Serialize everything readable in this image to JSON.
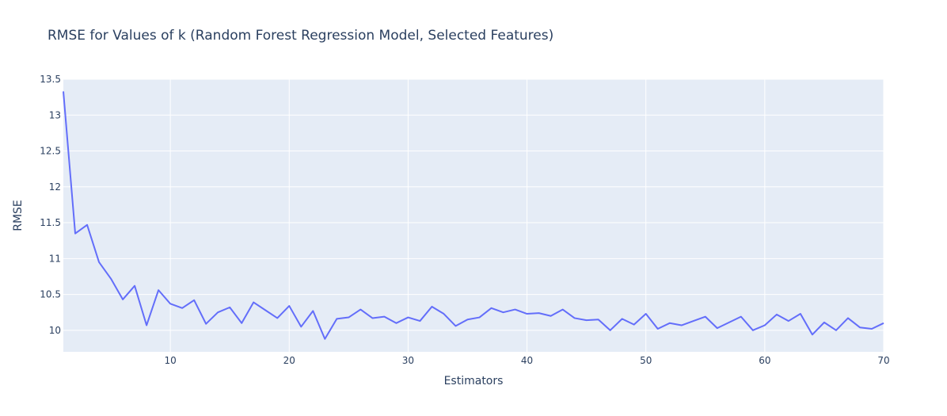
{
  "chart_data": {
    "type": "line",
    "title": "RMSE for Values of k (Random Forest Regression Model, Selected Features)",
    "xlabel": "Estimators",
    "ylabel": "RMSE",
    "xlim": [
      1,
      70
    ],
    "ylim": [
      9.7,
      13.5
    ],
    "x_ticks": [
      10,
      20,
      30,
      40,
      50,
      60,
      70
    ],
    "y_ticks": [
      10,
      10.5,
      11,
      11.5,
      12,
      12.5,
      13,
      13.5
    ],
    "x_tick_labels": [
      "10",
      "20",
      "30",
      "40",
      "50",
      "60",
      "70"
    ],
    "y_tick_labels": [
      "10",
      "10.5",
      "11",
      "11.5",
      "12",
      "12.5",
      "13",
      "13.5"
    ],
    "grid": true,
    "colors": {
      "line": "#636efa",
      "plot_bg": "#e5ecf6",
      "grid": "#ffffff",
      "text": "#2a3f5f"
    },
    "series": [
      {
        "name": "RMSE",
        "x": [
          1,
          2,
          3,
          4,
          5,
          6,
          7,
          8,
          9,
          10,
          11,
          12,
          13,
          14,
          15,
          16,
          17,
          18,
          19,
          20,
          21,
          22,
          23,
          24,
          25,
          26,
          27,
          28,
          29,
          30,
          31,
          32,
          33,
          34,
          35,
          36,
          37,
          38,
          39,
          40,
          41,
          42,
          43,
          44,
          45,
          46,
          47,
          48,
          49,
          50,
          51,
          52,
          53,
          54,
          55,
          56,
          57,
          58,
          59,
          60,
          61,
          62,
          63,
          64,
          65,
          66,
          67,
          68,
          69,
          70
        ],
        "values": [
          13.33,
          11.35,
          11.47,
          10.95,
          10.72,
          10.43,
          10.62,
          10.07,
          10.56,
          10.37,
          10.31,
          10.42,
          10.09,
          10.25,
          10.32,
          10.1,
          10.39,
          10.28,
          10.17,
          10.34,
          10.05,
          10.27,
          9.88,
          10.16,
          10.18,
          10.29,
          10.17,
          10.19,
          10.1,
          10.18,
          10.13,
          10.33,
          10.23,
          10.06,
          10.15,
          10.18,
          10.31,
          10.25,
          10.29,
          10.23,
          10.24,
          10.2,
          10.29,
          10.17,
          10.14,
          10.15,
          10.0,
          10.16,
          10.08,
          10.23,
          10.02,
          10.1,
          10.07,
          10.13,
          10.19,
          10.03,
          10.11,
          10.19,
          10.0,
          10.07,
          10.22,
          10.13,
          10.23,
          9.94,
          10.11,
          10.0,
          10.17,
          10.04,
          10.02,
          10.1
        ]
      }
    ]
  }
}
